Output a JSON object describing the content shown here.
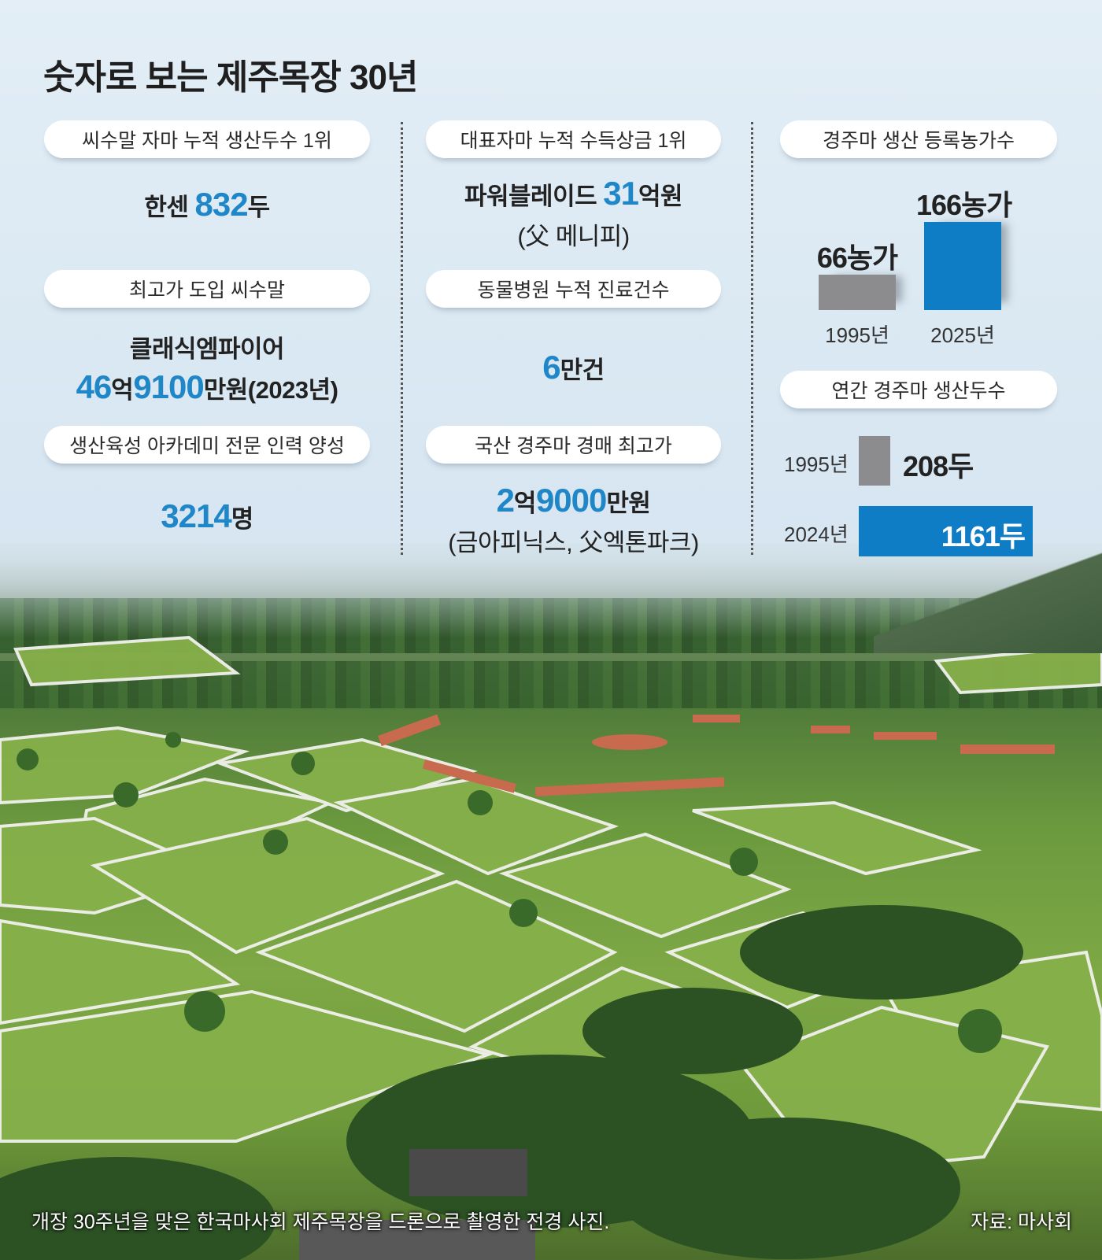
{
  "title": "숫자로 보는 제주목장 30년",
  "left": {
    "stat1": {
      "label": "씨수말 자마 누적 생산두수 1위",
      "pre": "한센 ",
      "value": "832",
      "unit": "두"
    },
    "stat2": {
      "label": "최고가 도입 씨수말",
      "name": "클래식엠파이어",
      "v1": "46",
      "u1": "억",
      "v2": "9100",
      "u2": "만원(2023년)"
    },
    "stat3": {
      "label": "생산육성 아카데미 전문 인력 양성",
      "value": "3214",
      "unit": "명"
    }
  },
  "middle": {
    "stat1": {
      "label": "대표자마 누적 수득상금 1위",
      "pre": "파워블레이드 ",
      "value": "31",
      "unit": "억원",
      "sub": "(父 메니피)"
    },
    "stat2": {
      "label": "동물병원 누적 진료건수",
      "value": "6",
      "unit": "만건"
    },
    "stat3": {
      "label": "국산 경주마 경매 최고가",
      "v1": "2",
      "u1": "억",
      "v2": "9000",
      "u2": "만원",
      "sub": "(금아피닉스, 父엑톤파크)"
    }
  },
  "right": {
    "farms": {
      "label": "경주마 생산 등록농가수",
      "bars": [
        {
          "year": "1995년",
          "value": 66,
          "text": "66농가",
          "color": "#8c8c8e"
        },
        {
          "year": "2025년",
          "value": 166,
          "text": "166농가",
          "color": "#0f7cc6"
        }
      ]
    },
    "production": {
      "label": "연간 경주마 생산두수",
      "bars": [
        {
          "year": "1995년",
          "value": 208,
          "text": "208두",
          "color": "#8c8c8e"
        },
        {
          "year": "2024년",
          "value": 1161,
          "text": "1161두",
          "color": "#0f7cc6"
        }
      ]
    }
  },
  "caption": "개장 30주년을 맞은 한국마사회 제주목장을 드론으로 촬영한 전경 사진.",
  "source": "자료: 마사회"
}
